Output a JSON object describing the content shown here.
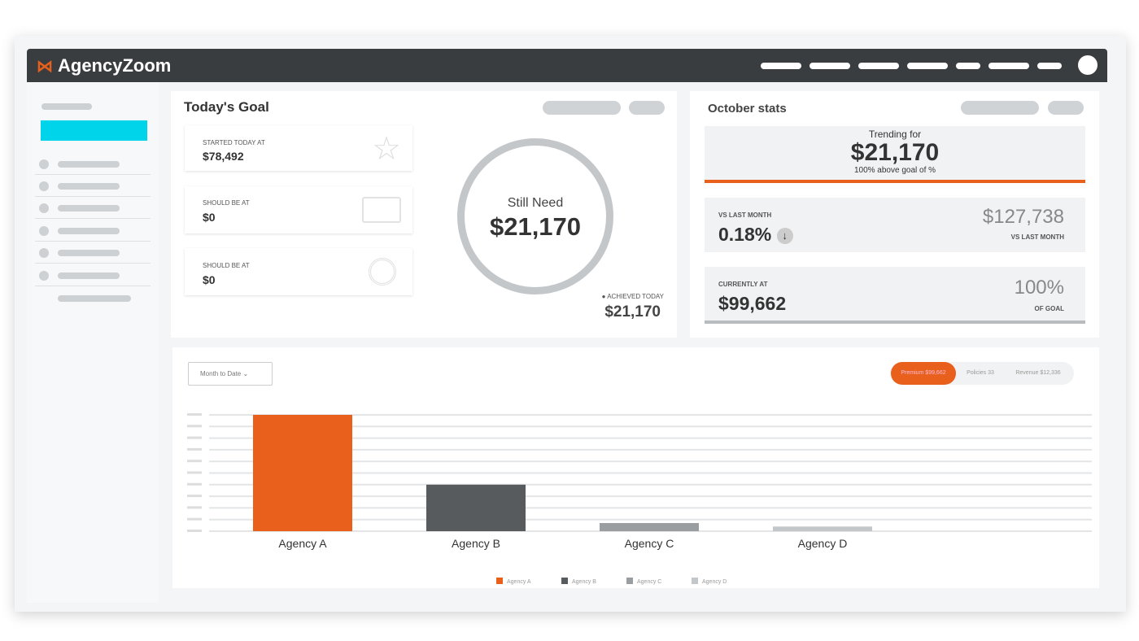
{
  "app": {
    "name": "AgencyZoom"
  },
  "goal": {
    "title": "Today's Goal",
    "cards": [
      {
        "label": "Started today at",
        "value": "$78,492",
        "icon": "star-icon"
      },
      {
        "label": "Should be at",
        "value": "$0",
        "icon": "id-card-icon"
      },
      {
        "label": "Should be at",
        "value": "$0",
        "icon": "target-icon"
      }
    ],
    "ring_label": "Still Need",
    "ring_value": "$21,170",
    "achieved_label": "Achieved today",
    "achieved_value": "$21,170"
  },
  "stats": {
    "title": "October stats",
    "trending_label": "Trending for",
    "trending_value": "$21,170",
    "trending_sub": "100% above goal of %",
    "vs_label": "VS last month",
    "vs_value": "0.18%",
    "vs_amount": "$127,738",
    "vs_amount_label": "VS last month",
    "current_label": "Currently at",
    "current_value": "$99,662",
    "current_pct": "100%",
    "current_pct_label": "Of goal"
  },
  "chart_controls": {
    "period": "Month to Date",
    "tabs": [
      "Premium $99,662",
      "Policies 33",
      "Revenue $12,336"
    ],
    "active_tab": 0
  },
  "colors": {
    "accent": "#e8601c",
    "dark": "#575b5e",
    "mid": "#9a9ea1",
    "light": "#c4c7c9",
    "cyan": "#00d4ea"
  },
  "chart_data": {
    "type": "bar",
    "categories": [
      "Agency A",
      "Agency B",
      "Agency C",
      "Agency D"
    ],
    "values": [
      100,
      40,
      7,
      4
    ],
    "ylim": [
      0,
      100
    ],
    "grid": true,
    "legend": [
      "Agency A",
      "Agency B",
      "Agency C",
      "Agency D"
    ],
    "legend_placement": "bottom",
    "colors": [
      "#e8601c",
      "#575b5e",
      "#9a9ea1",
      "#c4c7c9"
    ]
  }
}
